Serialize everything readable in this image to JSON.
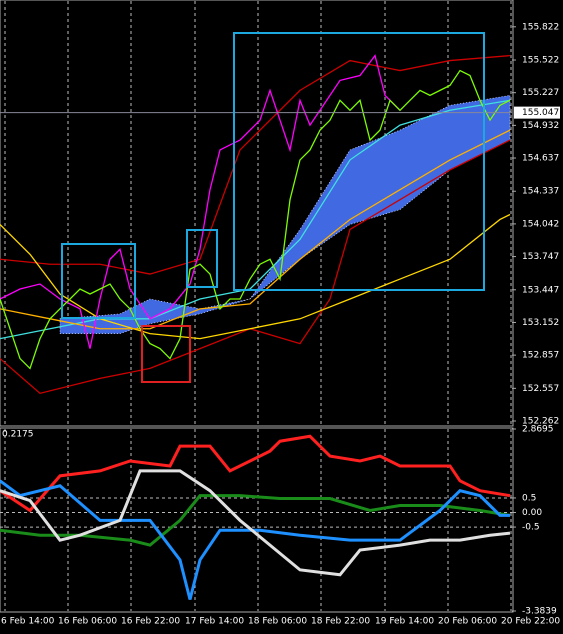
{
  "chart_data": [
    {
      "type": "line",
      "xlim": [
        0,
        51.2
      ],
      "ylim": [
        152.226,
        156.055
      ],
      "yticks": [
        155.822,
        155.522,
        155.227,
        154.932,
        154.637,
        154.337,
        154.042,
        153.747,
        153.447,
        153.152,
        152.857,
        152.557,
        152.262
      ],
      "xticks": [
        {
          "value": 0.5,
          "label": "6 Feb 14:00"
        },
        {
          "value": 6.8,
          "label": "16 Feb 06:00"
        },
        {
          "value": 13.1,
          "label": "16 Feb 22:00"
        },
        {
          "value": 19.5,
          "label": "17 Feb 14:00"
        },
        {
          "value": 25.8,
          "label": "18 Feb 06:00"
        },
        {
          "value": 32.1,
          "label": "18 Feb 22:00"
        },
        {
          "value": 38.5,
          "label": "19 Feb 14:00"
        },
        {
          "value": 44.8,
          "label": "20 Feb 06:00"
        },
        {
          "value": 51.1,
          "label": "20 Feb 22:00"
        }
      ],
      "current_price": 155.047,
      "series": [
        {
          "color": "#4169e1",
          "x": [
            6,
            12,
            15,
            20,
            25,
            30,
            35,
            40,
            45,
            51
          ],
          "values": [
            153.185,
            153.23,
            153.364,
            153.275,
            153.364,
            153.992,
            154.71,
            154.889,
            155.113,
            155.203
          ],
          "lower": [
            153.051,
            153.051,
            153.14,
            153.23,
            153.364,
            153.723,
            154.037,
            154.171,
            154.53,
            154.799
          ]
        },
        {
          "color": "#cc0000",
          "x": [
            0,
            5,
            10,
            15,
            20,
            24,
            30,
            35,
            40,
            45,
            51
          ],
          "values": [
            153.723,
            153.678,
            153.678,
            153.589,
            153.723,
            154.71,
            155.248,
            155.517,
            155.427,
            155.517,
            155.562
          ]
        },
        {
          "color": "#cc0000",
          "x": [
            0,
            4,
            10,
            15,
            20,
            25,
            30,
            33,
            35,
            40,
            45,
            51
          ],
          "values": [
            152.826,
            152.512,
            152.647,
            152.737,
            152.916,
            153.095,
            152.961,
            153.364,
            153.992,
            154.261,
            154.53,
            154.799
          ]
        },
        {
          "color": "#40e0e0",
          "x": [
            0,
            5,
            10,
            15,
            20,
            25,
            30,
            35,
            40,
            45,
            51
          ],
          "values": [
            153.006,
            153.095,
            153.185,
            153.185,
            153.364,
            153.454,
            153.903,
            154.62,
            154.934,
            155.068,
            155.158
          ]
        },
        {
          "color": "#ffd700",
          "x": [
            0,
            3,
            6,
            10,
            15,
            20,
            25,
            30,
            35,
            40,
            45,
            50,
            51
          ],
          "values": [
            154.037,
            153.768,
            153.409,
            153.185,
            153.051,
            153.006,
            153.095,
            153.185,
            153.364,
            153.544,
            153.723,
            154.082,
            154.127
          ]
        },
        {
          "color": "#ffb000",
          "x": [
            0,
            5,
            10,
            15,
            20,
            25,
            30,
            35,
            40,
            45,
            51
          ],
          "values": [
            153.275,
            153.185,
            153.095,
            153.095,
            153.275,
            153.32,
            153.723,
            154.082,
            154.351,
            154.62,
            154.889
          ]
        },
        {
          "color": "#ff00ff",
          "x": [
            0,
            2,
            4,
            6,
            8,
            9,
            10,
            11,
            12,
            13,
            15,
            17,
            19,
            20,
            21,
            22,
            23,
            24,
            26,
            27,
            28,
            29,
            30,
            31,
            32,
            34,
            36,
            37.5,
            38.5,
            40
          ],
          "values": [
            153.364,
            153.454,
            153.499,
            153.364,
            153.275,
            152.916,
            153.364,
            153.723,
            153.813,
            153.454,
            153.185,
            153.275,
            153.499,
            153.813,
            154.351,
            154.71,
            154.755,
            154.799,
            154.979,
            155.248,
            154.979,
            154.71,
            155.158,
            154.934,
            155.068,
            155.338,
            155.382,
            155.562,
            155.203,
            155.068
          ]
        },
        {
          "color": "#7cfc00",
          "x": [
            0,
            1,
            2,
            3,
            4,
            5,
            6,
            7,
            8,
            9,
            10,
            11,
            12,
            13,
            14,
            15,
            16,
            17,
            18,
            19,
            20,
            21,
            22,
            23,
            24,
            25,
            26,
            27,
            28,
            29,
            30,
            31,
            32,
            33,
            34,
            35,
            36,
            37,
            38,
            39,
            40,
            41,
            42,
            43,
            44,
            45,
            46,
            47,
            48,
            49,
            50,
            51
          ],
          "values": [
            153.364,
            153.095,
            152.826,
            152.737,
            153.006,
            153.185,
            153.275,
            153.364,
            153.454,
            153.409,
            153.454,
            153.499,
            153.364,
            153.275,
            153.095,
            152.961,
            152.916,
            152.826,
            153.006,
            153.633,
            153.678,
            153.589,
            153.275,
            153.364,
            153.364,
            153.544,
            153.678,
            153.723,
            153.544,
            154.261,
            154.62,
            154.71,
            154.889,
            154.979,
            155.158,
            155.068,
            155.158,
            154.799,
            154.889,
            155.158,
            155.068,
            155.158,
            155.248,
            155.203,
            155.248,
            155.293,
            155.427,
            155.382,
            155.158,
            154.979,
            155.113,
            155.158
          ]
        }
      ]
    },
    {
      "type": "line",
      "xlim": [
        0,
        51.2
      ],
      "ylim": [
        -3.3839,
        2.8695
      ],
      "yticks": [
        2.8695,
        0.5,
        {
          "value": 0,
          "label": "0.00"
        },
        -0.5,
        -3.3839
      ],
      "top_label": 0.2175,
      "series": [
        {
          "color": "#ff2020",
          "x": [
            0,
            3,
            6,
            10,
            13,
            17,
            18,
            21,
            23,
            27,
            28,
            31,
            33,
            36,
            38,
            40,
            45,
            46,
            48,
            51
          ],
          "values": [
            0.75,
            0.07,
            1.26,
            1.43,
            1.77,
            1.6,
            2.28,
            2.28,
            1.43,
            2.11,
            2.45,
            2.62,
            1.94,
            1.77,
            1.94,
            1.6,
            1.6,
            1.09,
            0.75,
            0.58
          ]
        },
        {
          "color": "#1a8c1a",
          "x": [
            0,
            4,
            8,
            13,
            15,
            18,
            20,
            24,
            28,
            33,
            37,
            40,
            44,
            48,
            51
          ],
          "values": [
            -0.61,
            -0.78,
            -0.78,
            -0.95,
            -1.12,
            -0.27,
            0.58,
            0.58,
            0.48,
            0.48,
            0.07,
            0.24,
            0.24,
            0.07,
            -0.1
          ]
        },
        {
          "color": "#1e90ff",
          "x": [
            0,
            2,
            6,
            10,
            15,
            18,
            19,
            20,
            22,
            26,
            30,
            35,
            40,
            44,
            46,
            48,
            50,
            51
          ],
          "values": [
            1.09,
            0.58,
            0.92,
            -0.27,
            -0.27,
            -1.63,
            -2.99,
            -1.63,
            -0.61,
            -0.61,
            -0.78,
            -0.95,
            -0.95,
            0.07,
            0.75,
            0.58,
            -0.1,
            -0.1
          ]
        },
        {
          "color": "#e0e0e0",
          "x": [
            0,
            3,
            6,
            8,
            12,
            14,
            18,
            21,
            24,
            27,
            30,
            34,
            36,
            40,
            43,
            46,
            49,
            51
          ],
          "values": [
            0.75,
            0.41,
            -0.95,
            -0.78,
            -0.27,
            1.43,
            1.43,
            0.75,
            -0.27,
            -1.12,
            -1.97,
            -2.14,
            -1.29,
            -1.12,
            -0.95,
            -0.95,
            -0.78,
            -0.71
          ]
        }
      ]
    }
  ]
}
